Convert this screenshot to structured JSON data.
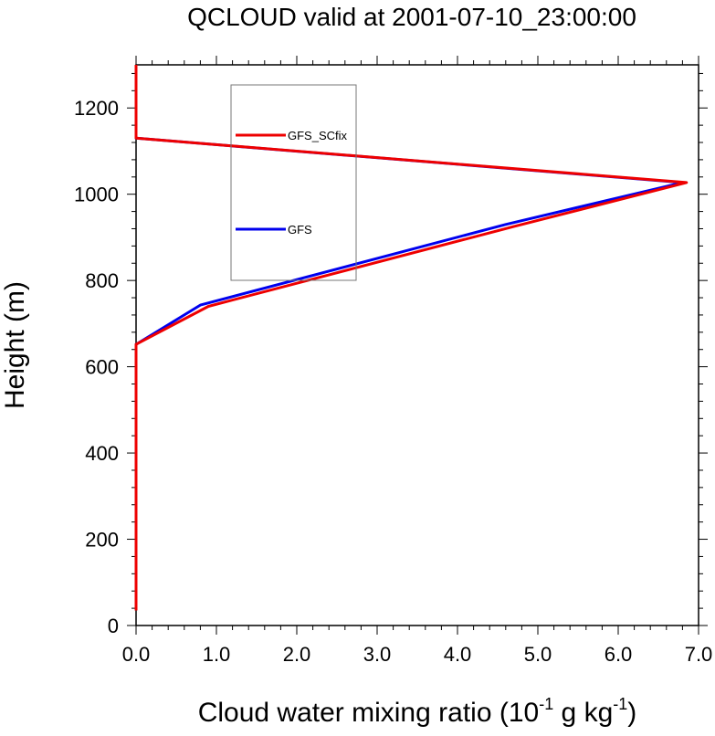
{
  "chart_data": {
    "type": "line",
    "title": "QCLOUD valid at 2001-07-10_23:00:00",
    "xlabel_parts": {
      "base": "Cloud water mixing ratio (10",
      "exp1": "-1",
      "mid": " g kg",
      "exp2": "-1",
      "end": ")"
    },
    "ylabel": "Height (m)",
    "xlim": [
      0.0,
      7.0
    ],
    "ylim": [
      0,
      1300
    ],
    "xticks": [
      "0.0",
      "1.0",
      "2.0",
      "3.0",
      "4.0",
      "5.0",
      "6.0",
      "7.0"
    ],
    "yticks": [
      "0",
      "200",
      "400",
      "600",
      "800",
      "1000",
      "1200"
    ],
    "grid": false,
    "legend_position": "upper-left-inside",
    "series": [
      {
        "name": "GFS",
        "color": "#0000ee",
        "x": [
          0.0,
          0.0,
          0.0,
          0.8,
          4.6,
          6.8,
          0.0,
          0.0
        ],
        "y": [
          35,
          400,
          652,
          743,
          930,
          1027,
          1130,
          1300
        ]
      },
      {
        "name": "GFS_SCfix",
        "color": "#ee0000",
        "x": [
          0.0,
          0.0,
          0.0,
          0.9,
          4.7,
          6.85,
          0.0,
          0.0
        ],
        "y": [
          35,
          400,
          652,
          740,
          925,
          1027,
          1130,
          1300
        ]
      }
    ]
  }
}
